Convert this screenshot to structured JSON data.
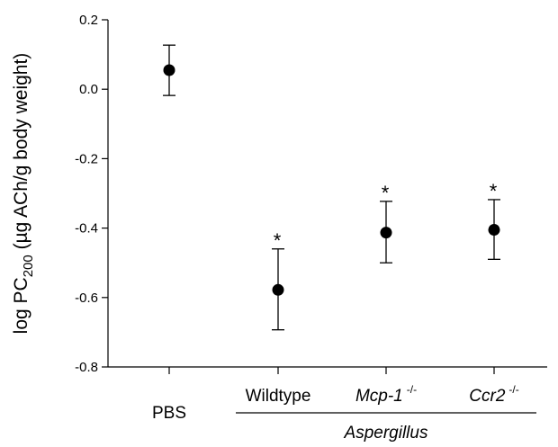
{
  "chart_data": {
    "type": "scatter",
    "title": "",
    "ylabel": {
      "prefix": "log PC",
      "subscript": "200",
      "suffix": " (µg ACh/g body weight)"
    },
    "ylim": [
      -0.8,
      0.2
    ],
    "yticks": [
      {
        "value": 0.2,
        "label": "0.2"
      },
      {
        "value": 0.0,
        "label": "0.0"
      },
      {
        "value": -0.2,
        "label": "-0.2"
      },
      {
        "value": -0.4,
        "label": "-0.4"
      },
      {
        "value": -0.6,
        "label": "-0.6"
      },
      {
        "value": -0.8,
        "label": "-0.8"
      }
    ],
    "categories": [
      "PBS",
      "Wildtype",
      "Mcp-1",
      "Ccr2"
    ],
    "category_superscripts": [
      "",
      "",
      "-/-",
      "-/-"
    ],
    "category_italic": [
      false,
      false,
      true,
      true
    ],
    "values": [
      0.055,
      -0.578,
      -0.413,
      -0.405
    ],
    "error_low": [
      -0.018,
      -0.693,
      -0.5,
      -0.49
    ],
    "error_high": [
      0.127,
      -0.46,
      -0.323,
      -0.318
    ],
    "significance": [
      "",
      "*",
      "*",
      "*"
    ],
    "group_label": "Aspergillus",
    "grid": false,
    "legend": "none"
  }
}
